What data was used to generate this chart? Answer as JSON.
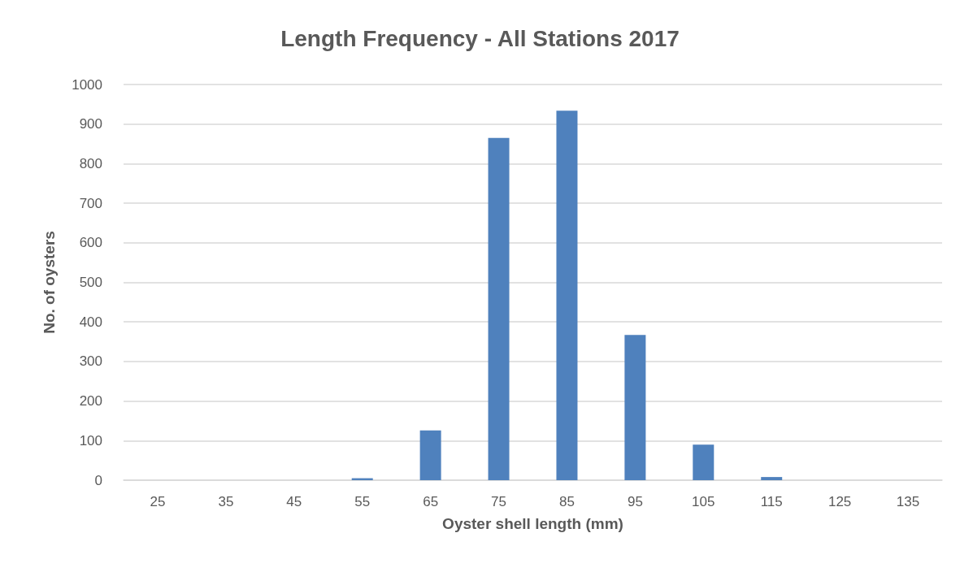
{
  "chart_data": {
    "type": "bar",
    "title": "Length Frequency - All Stations 2017",
    "xlabel": "Oyster shell length (mm)",
    "ylabel": "No. of oysters",
    "categories": [
      "25",
      "35",
      "45",
      "55",
      "65",
      "75",
      "85",
      "95",
      "105",
      "115",
      "125",
      "135"
    ],
    "values": [
      0,
      0,
      0,
      5,
      126,
      865,
      934,
      367,
      90,
      8,
      0,
      0
    ],
    "color": "#4f81bd",
    "ylim": [
      0,
      1000
    ],
    "yticks": [
      0,
      100,
      200,
      300,
      400,
      500,
      600,
      700,
      800,
      900,
      1000
    ],
    "grid": "y"
  }
}
